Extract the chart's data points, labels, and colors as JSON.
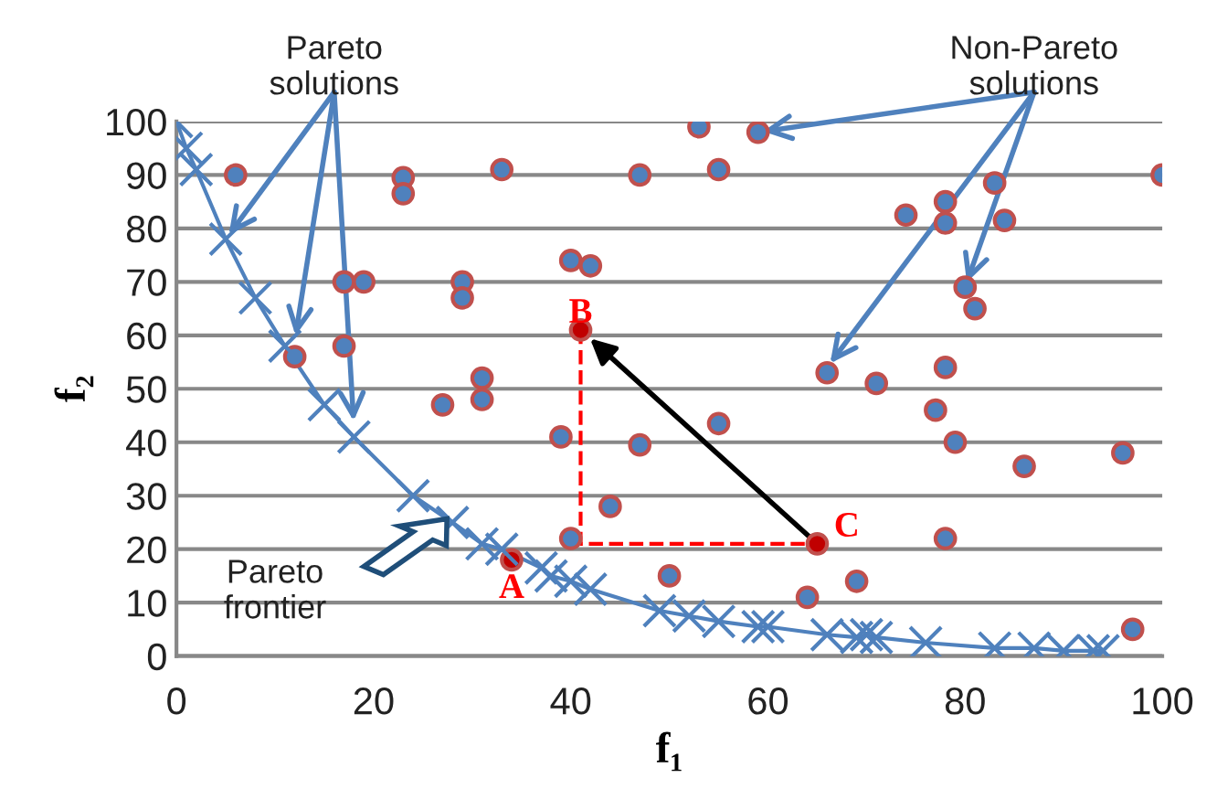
{
  "chart_data": {
    "type": "scatter",
    "xlabel": "f₁",
    "ylabel": "f₂",
    "xlim": [
      0,
      100
    ],
    "xticks": [
      0,
      20,
      40,
      60,
      80,
      100
    ],
    "ylim": [
      0,
      100
    ],
    "yticks": [
      0,
      10,
      20,
      30,
      40,
      50,
      60,
      70,
      80,
      90,
      100
    ],
    "grid": "y",
    "legend": false,
    "series": [
      {
        "type": "scatter",
        "color": "#4f81bd",
        "marker": "circle",
        "x": [
          6,
          23,
          23,
          33,
          17,
          19,
          29,
          29,
          40,
          42,
          17,
          12,
          31,
          31,
          27,
          39,
          47,
          44,
          40,
          47,
          53,
          55,
          59,
          74,
          78,
          78,
          83,
          84,
          100,
          80,
          81,
          66,
          71,
          78,
          77,
          79,
          86,
          96,
          55,
          78,
          50,
          69,
          64,
          97
        ],
        "values": [
          90,
          89.5,
          86.5,
          91,
          70,
          70,
          70,
          67,
          74,
          73,
          58,
          56,
          52,
          48,
          47,
          41,
          39.5,
          28,
          22,
          90,
          99,
          91,
          98,
          82.5,
          85,
          81,
          88.5,
          81.5,
          90,
          69,
          65,
          53,
          51,
          54,
          46,
          40,
          35.5,
          38,
          43.5,
          22,
          15,
          14,
          11,
          5
        ]
      },
      {
        "type": "line",
        "color": "#4f81bd",
        "marker": "cross",
        "line_style": "solid",
        "x": [
          0,
          1,
          2,
          5,
          8,
          11,
          15,
          18,
          24,
          28,
          31,
          33,
          37,
          38,
          40,
          42,
          49,
          52,
          55,
          59,
          60,
          66,
          69,
          70,
          71,
          76,
          83,
          87,
          90,
          93,
          94
        ],
        "values": [
          100,
          95,
          91,
          78,
          67,
          58,
          47,
          41,
          30,
          25,
          21,
          20,
          16.5,
          15,
          14,
          12.5,
          8.5,
          7.5,
          6.5,
          5.5,
          5.5,
          4,
          3.5,
          4,
          3.5,
          2.5,
          1.5,
          1.5,
          1,
          1,
          1
        ]
      },
      {
        "type": "line",
        "color": "#ff0000",
        "marker": "none",
        "line_style": "dashed",
        "x": [
          41,
          41,
          65
        ],
        "values": [
          61,
          21,
          21
        ]
      },
      {
        "type": "scatter",
        "color": "#c00000",
        "marker": "circle",
        "x": [
          34,
          41,
          65
        ],
        "values": [
          18,
          61,
          21
        ]
      }
    ],
    "annotations": [
      {
        "text": "A",
        "x": 34,
        "y": 18
      },
      {
        "text": "B",
        "x": 41,
        "y": 61
      },
      {
        "text": "C",
        "x": 65,
        "y": 21
      },
      {
        "text": "Pareto\nsolutions",
        "x": 5,
        "y": 78
      },
      {
        "text": "Non-Pareto\nsolutions",
        "x": 59,
        "y": 98
      },
      "Pareto\nfrontier"
    ]
  }
}
